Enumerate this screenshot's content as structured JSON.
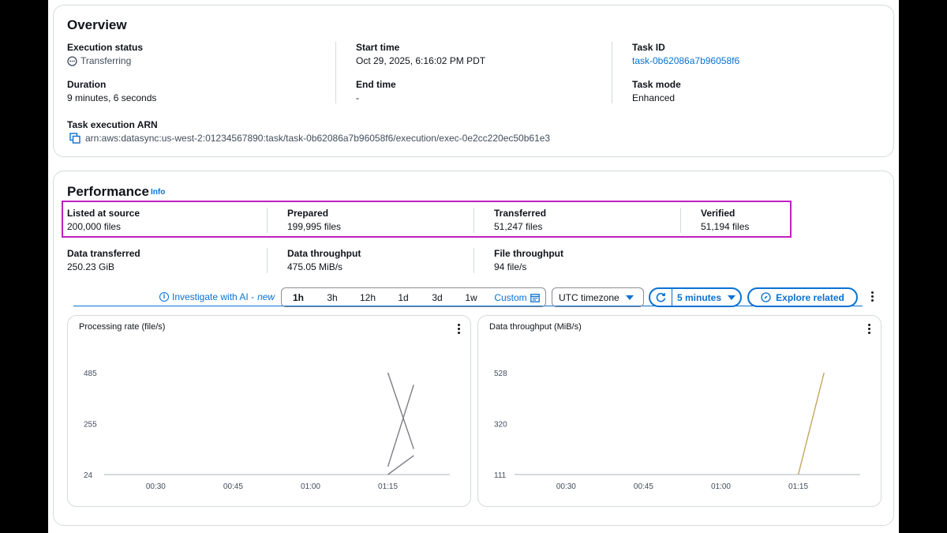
{
  "overview": {
    "title": "Overview",
    "execution_status_label": "Execution status",
    "execution_status_value": "Transferring",
    "start_time_label": "Start time",
    "start_time_value": "Oct 29, 2025, 6:16:02 PM PDT",
    "task_id_label": "Task ID",
    "task_id_value": "task-0b62086a7b96058f6",
    "duration_label": "Duration",
    "duration_value": "9 minutes, 6 seconds",
    "end_time_label": "End time",
    "end_time_value": "-",
    "task_mode_label": "Task mode",
    "task_mode_value": "Enhanced",
    "arn_label": "Task execution ARN",
    "arn_value": "arn:aws:datasync:us-west-2:01234567890:task/task-0b62086a7b96058f6/execution/exec-0e2cc220ec50b61e3"
  },
  "performance": {
    "title": "Performance",
    "info_link": "Info",
    "listed_label": "Listed at source",
    "listed_value": "200,000 files",
    "prepared_label": "Prepared",
    "prepared_value": "199,995 files",
    "transferred_label": "Transferred",
    "transferred_value": "51,247 files",
    "verified_label": "Verified",
    "verified_value": "51,194 files",
    "data_transferred_label": "Data transferred",
    "data_transferred_value": "250.23 GiB",
    "data_throughput_label": "Data throughput",
    "data_throughput_value": "475.05 MiB/s",
    "file_throughput_label": "File throughput",
    "file_throughput_value": "94 file/s"
  },
  "toolbar": {
    "investigate_label": "Investigate with AI - ",
    "investigate_new": "new",
    "ranges": [
      "1h",
      "3h",
      "12h",
      "1d",
      "3d",
      "1w"
    ],
    "active_range": "1h",
    "custom_label": "Custom",
    "timezone_label": "UTC timezone",
    "refresh_interval": "5 minutes",
    "explore_label": "Explore related"
  },
  "colors": {
    "accent": "#0972d3",
    "highlight": "#c020c0",
    "series_gray": "#7d7d87",
    "series_tan": "#c3a55b"
  },
  "chart_data": [
    {
      "type": "line",
      "title": "Processing rate (file/s)",
      "y_ticks": [
        "485",
        "255",
        "24"
      ],
      "x_ticks": [
        "00:30",
        "00:45",
        "01:00",
        "01:15"
      ],
      "series": [
        {
          "x": [
            "01:15",
            "01:20"
          ],
          "values": [
            485,
            140
          ]
        },
        {
          "x": [
            "01:15",
            "01:20"
          ],
          "values": [
            60,
            430
          ]
        },
        {
          "x": [
            "01:15",
            "01:20"
          ],
          "values": [
            24,
            110
          ]
        }
      ],
      "ylim": [
        24,
        485
      ]
    },
    {
      "type": "line",
      "title": "Data throughput (MiB/s)",
      "y_ticks": [
        "528",
        "320",
        "111"
      ],
      "x_ticks": [
        "00:30",
        "00:45",
        "01:00",
        "01:15"
      ],
      "series": [
        {
          "x": [
            "01:15",
            "01:20"
          ],
          "values": [
            111,
            528
          ]
        }
      ],
      "ylim": [
        111,
        528
      ]
    }
  ]
}
